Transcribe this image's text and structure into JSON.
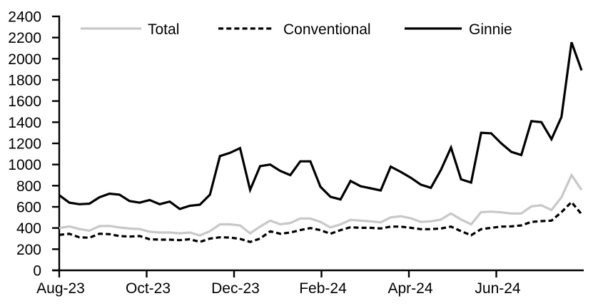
{
  "chart_data": {
    "type": "line",
    "title": "",
    "frequency": "weekly",
    "x_axis": {
      "tick_labels": [
        "Aug-23",
        "Oct-23",
        "Dec-23",
        "Feb-24",
        "Apr-24",
        "Jun-24"
      ],
      "tick_month_offsets": [
        0,
        2,
        4,
        6,
        8,
        10
      ],
      "axis_span_months": 12
    },
    "y_axis": {
      "min": 0,
      "max": 2400,
      "step": 200,
      "tick_labels": [
        "0",
        "200",
        "400",
        "600",
        "800",
        "1000",
        "1200",
        "1400",
        "1600",
        "1800",
        "2000",
        "2200",
        "2400"
      ]
    },
    "legend": {
      "position": "top",
      "entries": [
        "Total",
        "Conventional",
        "Ginnie"
      ]
    },
    "series": [
      {
        "name": "Total",
        "color": "#c8c8c8",
        "dash": "solid",
        "values": [
          400,
          415,
          390,
          375,
          418,
          420,
          405,
          395,
          390,
          365,
          357,
          357,
          350,
          357,
          330,
          370,
          435,
          435,
          425,
          350,
          413,
          470,
          435,
          447,
          490,
          490,
          458,
          405,
          435,
          477,
          470,
          463,
          454,
          500,
          512,
          492,
          458,
          463,
          480,
          537,
          480,
          435,
          550,
          555,
          548,
          537,
          537,
          605,
          615,
          570,
          690,
          900,
          760
        ]
      },
      {
        "name": "Conventional",
        "color": "#000000",
        "dash": "dashed",
        "values": [
          335,
          345,
          312,
          308,
          346,
          342,
          324,
          319,
          324,
          294,
          290,
          290,
          285,
          294,
          268,
          300,
          312,
          310,
          297,
          268,
          300,
          369,
          346,
          357,
          380,
          400,
          380,
          346,
          380,
          407,
          402,
          402,
          396,
          413,
          413,
          402,
          389,
          389,
          396,
          413,
          370,
          332,
          389,
          402,
          413,
          415,
          425,
          458,
          465,
          470,
          550,
          645,
          530
        ]
      },
      {
        "name": "Ginnie",
        "color": "#000000",
        "dash": "solid",
        "values": [
          710,
          640,
          625,
          630,
          690,
          725,
          715,
          655,
          640,
          665,
          625,
          650,
          580,
          610,
          620,
          715,
          1080,
          1110,
          1155,
          760,
          985,
          1000,
          940,
          900,
          1030,
          1030,
          790,
          695,
          670,
          845,
          795,
          775,
          755,
          980,
          930,
          875,
          810,
          780,
          950,
          1160,
          860,
          830,
          1300,
          1295,
          1200,
          1120,
          1090,
          1410,
          1400,
          1240,
          1450,
          2155,
          1890
        ]
      }
    ]
  },
  "colors": {
    "background": "#ffffff",
    "axis": "#000000",
    "total_line": "#c8c8c8",
    "black_line": "#000000"
  }
}
